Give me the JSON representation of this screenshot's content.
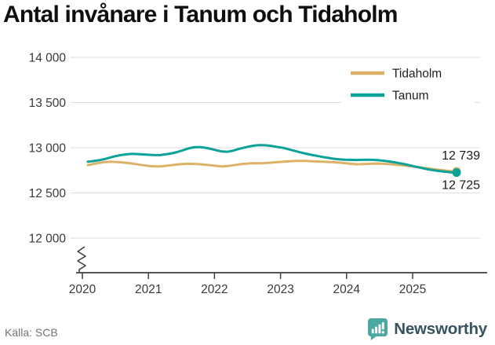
{
  "title": "Antal invånare i Tanum och Tidaholm",
  "source": "Källa: SCB",
  "branding": {
    "wordmark": "Newsworthy",
    "icon": "newsworthy-speech-bubble-chart-icon",
    "icon_color": "#4BA9A2",
    "wordmark_color": "#36535E"
  },
  "chart_data": {
    "type": "line",
    "title": "Antal invånare i Tanum och Tidaholm",
    "xlabel": "",
    "ylabel": "",
    "x_tick_labels": [
      "2020",
      "2021",
      "2022",
      "2023",
      "2024",
      "2025"
    ],
    "y_ticks": [
      14000,
      13500,
      13000,
      12500,
      12000
    ],
    "y_tick_labels": [
      "14 000",
      "13 500",
      "13 000",
      "12 500",
      "12 000"
    ],
    "ylim": [
      12000,
      14000
    ],
    "axis_break": true,
    "grid": "horizontal",
    "legend_position": "top-right",
    "x_unit": "month",
    "x_start": "2020-02",
    "x_end": "2025-08",
    "series": [
      {
        "name": "Tidaholm",
        "color": "#DBB266",
        "end_label": "12 739",
        "values": [
          12808,
          12820,
          12832,
          12842,
          12846,
          12843,
          12838,
          12832,
          12824,
          12815,
          12806,
          12798,
          12793,
          12794,
          12800,
          12808,
          12815,
          12820,
          12823,
          12821,
          12817,
          12812,
          12806,
          12799,
          12794,
          12797,
          12806,
          12815,
          12822,
          12827,
          12829,
          12829,
          12831,
          12836,
          12842,
          12846,
          12850,
          12853,
          12855,
          12854,
          12851,
          12848,
          12846,
          12843,
          12840,
          12836,
          12830,
          12823,
          12817,
          12818,
          12821,
          12824,
          12825,
          12822,
          12818,
          12813,
          12808,
          12801,
          12794,
          12786,
          12778,
          12770,
          12762,
          12755,
          12748,
          12742,
          12739
        ]
      },
      {
        "name": "Tanum",
        "color": "#0BA29A",
        "end_label": "12 725",
        "values": [
          12845,
          12852,
          12862,
          12875,
          12892,
          12908,
          12920,
          12928,
          12932,
          12930,
          12926,
          12922,
          12918,
          12920,
          12928,
          12938,
          12952,
          12972,
          12992,
          13005,
          13008,
          13000,
          12988,
          12972,
          12958,
          12956,
          12968,
          12986,
          13002,
          13016,
          13026,
          13030,
          13026,
          13018,
          13008,
          12998,
          12982,
          12966,
          12950,
          12935,
          12922,
          12910,
          12898,
          12888,
          12878,
          12872,
          12868,
          12866,
          12864,
          12866,
          12868,
          12866,
          12862,
          12856,
          12848,
          12838,
          12826,
          12814,
          12800,
          12786,
          12772,
          12760,
          12750,
          12742,
          12735,
          12729,
          12725
        ]
      }
    ]
  }
}
